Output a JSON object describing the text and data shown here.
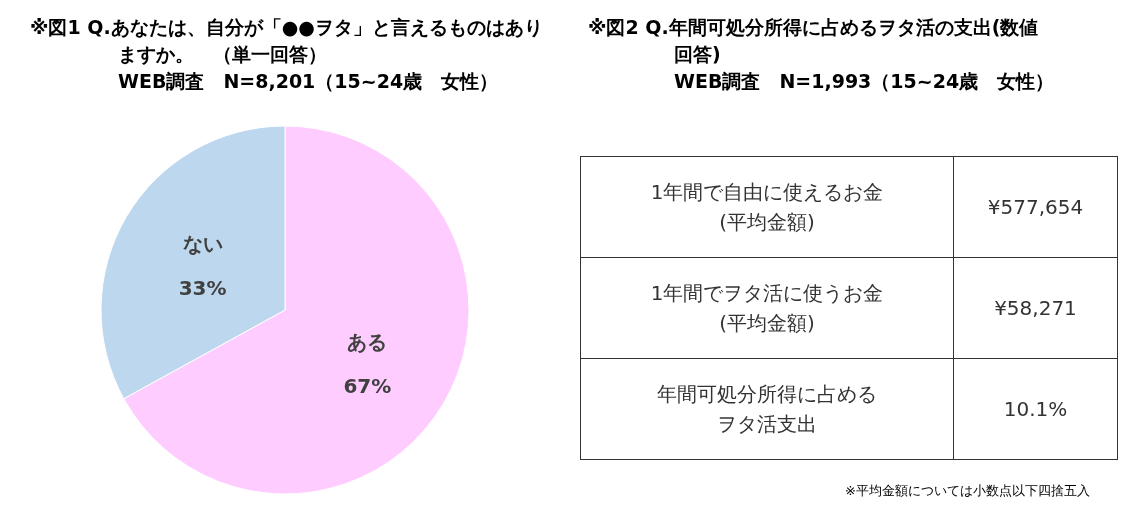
{
  "chart_data": [
    {
      "type": "pie",
      "title": "※図1 Q.あなたは、自分が「●●ヲタ」と言えるものはありますか。　（単一回答）",
      "subtitle": "WEB調査　N=8,201（15~24歳　女性）",
      "categories": [
        "ある",
        "ない"
      ],
      "values": [
        67,
        33
      ],
      "colors": [
        "#ffccff",
        "#bdd7ee"
      ],
      "value_labels": [
        "67%",
        "33%"
      ]
    },
    {
      "type": "other",
      "title": "※図2 Q.年間可処分所得に占めるヲタ活の支出(数値回答)",
      "subtitle": "WEB調査　N=1,993（15~24歳　女性）",
      "categories": [
        "1年間で自由に使えるお金(平均金額)",
        "1年間でヲタ活に使うお金(平均金額)",
        "年間可処分所得に占めるヲタ活支出"
      ],
      "value_labels": [
        "¥577,654",
        "¥58,271",
        "10.1%"
      ],
      "annotations": [
        "※平均金額については小数点以下四捨五入"
      ]
    }
  ]
}
